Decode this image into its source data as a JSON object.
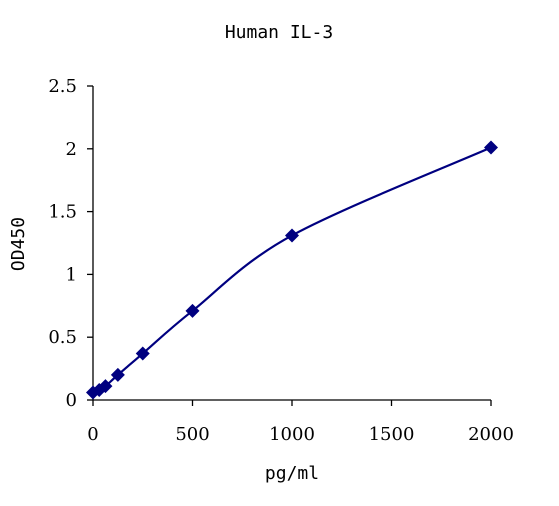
{
  "chart_data": {
    "type": "scatter",
    "title": "Human IL-3",
    "xlabel": "pg/ml",
    "ylabel": "OD450",
    "xlim": [
      0,
      2000
    ],
    "ylim": [
      0,
      2.5
    ],
    "xticks": [
      "0",
      "500",
      "1000",
      "1500",
      "2000"
    ],
    "yticks": [
      "0",
      "0.5",
      "1",
      "1.5",
      "2",
      "2.5"
    ],
    "grid": false,
    "legend": "none",
    "series": [
      {
        "x": [
          0,
          31.25,
          62.5,
          125,
          250,
          500,
          1000,
          2000
        ],
        "y": [
          0.06,
          0.08,
          0.11,
          0.2,
          0.37,
          0.71,
          1.31,
          2.01
        ],
        "marker": "diamond",
        "line": "smooth",
        "color": "#000080"
      }
    ]
  }
}
